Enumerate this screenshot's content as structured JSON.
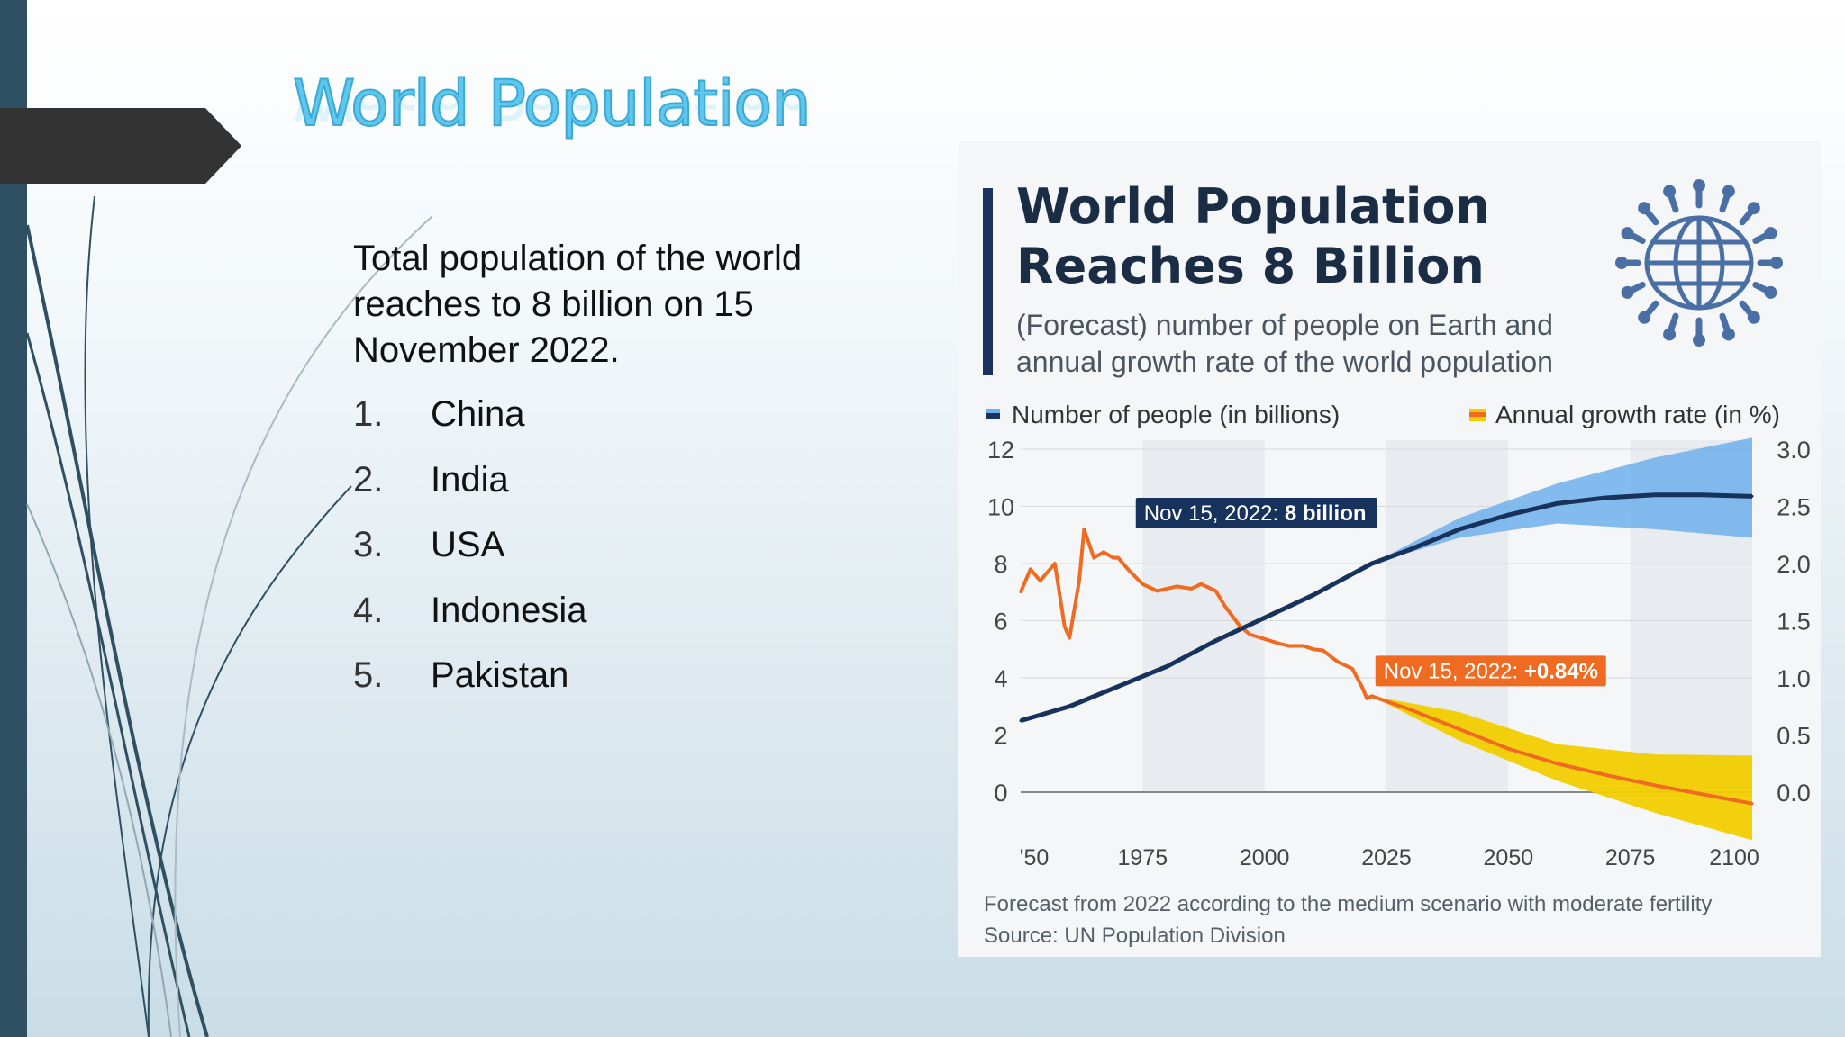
{
  "slide": {
    "title": "World Population",
    "intro": "Total population of  the world reaches to 8 billion on 15 November 2022.",
    "countries": [
      {
        "num": "1.",
        "name": "China"
      },
      {
        "num": "2.",
        "name": "India"
      },
      {
        "num": "3.",
        "name": "USA"
      },
      {
        "num": "4.",
        "name": "Indonesia"
      },
      {
        "num": "5.",
        "name": "Pakistan"
      }
    ]
  },
  "infographic": {
    "title_line1": "World Population",
    "title_line2": "Reaches 8 Billion",
    "subtitle_line1": "(Forecast) number of people on Earth and",
    "subtitle_line2": "annual growth rate of the world population",
    "caption_line1": "Forecast from 2022 according to the medium scenario with moderate fertility",
    "caption_line2": "Source: UN Population Division",
    "icon": "globe-people-icon"
  },
  "chart_data": {
    "type": "line",
    "legend": {
      "left": "Number of people (in billions)",
      "right": "Annual growth rate (in %)",
      "placement": "top"
    },
    "x_ticks": [
      "'50",
      "1975",
      "2000",
      "2025",
      "2050",
      "2075",
      "2100"
    ],
    "x_tick_values": [
      1950,
      1975,
      2000,
      2025,
      2050,
      2075,
      2100
    ],
    "xlim": [
      1950,
      2100
    ],
    "y_left": {
      "ylim": [
        0,
        12
      ],
      "ticks": [
        "0",
        "2",
        "4",
        "6",
        "8",
        "10",
        "12"
      ]
    },
    "y_right": {
      "ylim": [
        0,
        3
      ],
      "ticks": [
        "0.0",
        "0.5",
        "1.0",
        "1.5",
        "2.0",
        "2.5",
        "3.0"
      ]
    },
    "grid": true,
    "colors": {
      "population": "#17325c",
      "growth": "#f06b22",
      "pop_band": "#6fb0ec",
      "growth_band": "#f1cd00"
    },
    "series": [
      {
        "name": "Number of people (in billions)",
        "axis": "left",
        "x": [
          1950,
          1960,
          1970,
          1980,
          1990,
          2000,
          2010,
          2022,
          2030,
          2040,
          2050,
          2060,
          2070,
          2080,
          2090,
          2100
        ],
        "values": [
          2.5,
          3.0,
          3.7,
          4.4,
          5.3,
          6.1,
          6.9,
          8.0,
          8.5,
          9.2,
          9.7,
          10.1,
          10.3,
          10.4,
          10.4,
          10.35
        ]
      },
      {
        "name": "Annual growth rate (in %)",
        "axis": "right",
        "x": [
          1950,
          1952,
          1954,
          1957,
          1959,
          1960,
          1962,
          1963,
          1965,
          1967,
          1969,
          1970,
          1972,
          1975,
          1978,
          1980,
          1982,
          1985,
          1987,
          1990,
          1992,
          1995,
          1997,
          2000,
          2003,
          2005,
          2008,
          2010,
          2012,
          2015,
          2018,
          2020,
          2021,
          2022,
          2030,
          2040,
          2050,
          2060,
          2070,
          2080,
          2090,
          2100
        ],
        "values": [
          1.75,
          1.95,
          1.85,
          2.0,
          1.45,
          1.35,
          1.85,
          2.3,
          2.05,
          2.1,
          2.05,
          2.05,
          1.95,
          1.82,
          1.76,
          1.78,
          1.8,
          1.78,
          1.82,
          1.76,
          1.62,
          1.45,
          1.38,
          1.34,
          1.3,
          1.28,
          1.28,
          1.25,
          1.24,
          1.14,
          1.08,
          0.92,
          0.82,
          0.84,
          0.72,
          0.55,
          0.38,
          0.25,
          0.15,
          0.06,
          -0.02,
          -0.1
        ]
      }
    ],
    "bands": {
      "population": {
        "x": [
          2022,
          2040,
          2060,
          2080,
          2100
        ],
        "low": [
          8.0,
          8.9,
          9.4,
          9.2,
          8.9
        ],
        "high": [
          8.0,
          9.6,
          10.8,
          11.7,
          12.4
        ]
      },
      "growth": {
        "x": [
          2022,
          2040,
          2060,
          2080,
          2100
        ],
        "low": [
          0.84,
          0.45,
          0.1,
          -0.18,
          -0.42
        ],
        "high": [
          0.84,
          0.7,
          0.42,
          0.33,
          0.32
        ]
      }
    },
    "annotations": [
      {
        "prefix": "Nov 15, 2022: ",
        "value": "8 billion",
        "x": 2022,
        "y": 8.0,
        "axis": "left"
      },
      {
        "prefix": "Nov 15, 2022: ",
        "value": "+0.84%",
        "x": 2022,
        "y": 0.84,
        "axis": "right"
      }
    ]
  }
}
